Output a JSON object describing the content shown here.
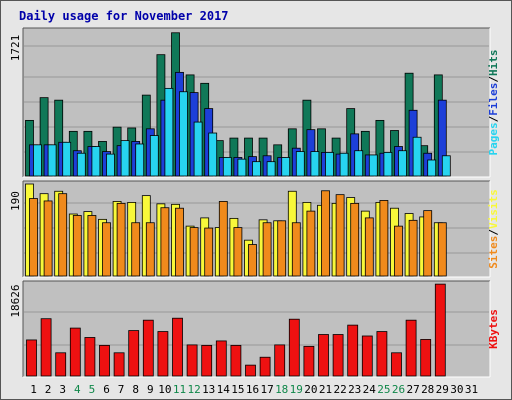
{
  "title": "Daily usage for November 2017",
  "colors": {
    "hits": "#107858",
    "files": "#1d3fd8",
    "pages": "#27d4f0",
    "visits": "#f8f83a",
    "sites": "#f08a1c",
    "kbytes": "#ee1111",
    "panel": "#c0c0c0",
    "title": "#0000aa",
    "weekend_day": "#10884a"
  },
  "chart_data": [
    {
      "type": "bar",
      "name": "hits-files-pages",
      "ymax_label": "1721",
      "ylim": [
        0,
        1721
      ],
      "legend": [
        {
          "text": "Pages",
          "color": "#27d4f0"
        },
        {
          "text": "/",
          "color": "#000000"
        },
        {
          "text": "Files",
          "color": "#1d3fd8"
        },
        {
          "text": "/",
          "color": "#000000"
        },
        {
          "text": "Hits",
          "color": "#107858"
        }
      ],
      "categories": [
        "1",
        "2",
        "3",
        "4",
        "5",
        "6",
        "7",
        "8",
        "9",
        "10",
        "11",
        "12",
        "13",
        "14",
        "15",
        "16",
        "17",
        "18",
        "19",
        "20",
        "21",
        "22",
        "23",
        "24",
        "25",
        "26",
        "27",
        "28",
        "29",
        "30",
        "31"
      ],
      "series": [
        {
          "name": "Hits",
          "values": [
            660,
            930,
            900,
            530,
            530,
            410,
            580,
            570,
            960,
            1440,
            1700,
            1200,
            1100,
            420,
            450,
            450,
            450,
            370,
            560,
            900,
            560,
            450,
            800,
            530,
            660,
            540,
            1220,
            360,
            1200,
            0,
            0
          ]
        },
        {
          "name": "Files",
          "values": [
            370,
            370,
            400,
            300,
            350,
            290,
            360,
            410,
            560,
            900,
            1230,
            990,
            800,
            220,
            220,
            230,
            240,
            220,
            330,
            550,
            280,
            260,
            500,
            250,
            270,
            350,
            780,
            270,
            900,
            0,
            0
          ]
        },
        {
          "name": "Pages",
          "values": [
            370,
            370,
            400,
            270,
            350,
            260,
            420,
            380,
            480,
            1040,
            1000,
            640,
            510,
            220,
            200,
            170,
            170,
            220,
            290,
            290,
            280,
            270,
            300,
            250,
            280,
            300,
            460,
            190,
            240,
            0,
            0
          ]
        }
      ]
    },
    {
      "type": "bar",
      "name": "visits-sites",
      "ymax_label": "190",
      "ylim": [
        0,
        190
      ],
      "legend": [
        {
          "text": "Sites",
          "color": "#f08a1c"
        },
        {
          "text": "/",
          "color": "#000000"
        },
        {
          "text": "Visits",
          "color": "#f8f83a"
        }
      ],
      "categories": [
        "1",
        "2",
        "3",
        "4",
        "5",
        "6",
        "7",
        "8",
        "9",
        "10",
        "11",
        "12",
        "13",
        "14",
        "15",
        "16",
        "17",
        "18",
        "19",
        "20",
        "21",
        "22",
        "23",
        "24",
        "25",
        "26",
        "27",
        "28",
        "29",
        "30",
        "31"
      ],
      "series": [
        {
          "name": "Visits",
          "values": [
            190,
            170,
            175,
            128,
            133,
            117,
            154,
            152,
            166,
            149,
            148,
            103,
            120,
            100,
            119,
            74,
            116,
            114,
            175,
            152,
            146,
            150,
            162,
            134,
            152,
            140,
            129,
            122,
            110,
            0,
            0
          ]
        },
        {
          "name": "Sites",
          "values": [
            160,
            155,
            170,
            125,
            125,
            110,
            150,
            110,
            110,
            141,
            140,
            100,
            99,
            154,
            100,
            65,
            110,
            114,
            110,
            134,
            176,
            168,
            150,
            120,
            156,
            103,
            115,
            135,
            110,
            0,
            0
          ]
        }
      ]
    },
    {
      "type": "bar",
      "name": "kbytes",
      "ymax_label": "18626",
      "ylim": [
        0,
        18626
      ],
      "legend": [
        {
          "text": "KBytes",
          "color": "#ee1111"
        }
      ],
      "categories": [
        "1",
        "2",
        "3",
        "4",
        "5",
        "6",
        "7",
        "8",
        "9",
        "10",
        "11",
        "12",
        "13",
        "14",
        "15",
        "16",
        "17",
        "18",
        "19",
        "20",
        "21",
        "22",
        "23",
        "24",
        "25",
        "26",
        "27",
        "28",
        "29",
        "30",
        "31"
      ],
      "series": [
        {
          "name": "KBytes",
          "values": [
            7300,
            11600,
            4700,
            9700,
            7800,
            6200,
            4700,
            9200,
            11300,
            9000,
            11700,
            6300,
            6200,
            7100,
            6200,
            2200,
            3800,
            6300,
            11500,
            6000,
            8400,
            8400,
            10300,
            8100,
            9000,
            4700,
            11300,
            7400,
            18600,
            0,
            0
          ]
        }
      ]
    }
  ],
  "x_labels": [
    {
      "text": "1",
      "weekend": false
    },
    {
      "text": "2",
      "weekend": false
    },
    {
      "text": "3",
      "weekend": false
    },
    {
      "text": "4",
      "weekend": true
    },
    {
      "text": "5",
      "weekend": true
    },
    {
      "text": "6",
      "weekend": false
    },
    {
      "text": "7",
      "weekend": false
    },
    {
      "text": "8",
      "weekend": false
    },
    {
      "text": "9",
      "weekend": false
    },
    {
      "text": "10",
      "weekend": false
    },
    {
      "text": "11",
      "weekend": true
    },
    {
      "text": "12",
      "weekend": true
    },
    {
      "text": "13",
      "weekend": false
    },
    {
      "text": "14",
      "weekend": false
    },
    {
      "text": "15",
      "weekend": false
    },
    {
      "text": "16",
      "weekend": false
    },
    {
      "text": "17",
      "weekend": false
    },
    {
      "text": "18",
      "weekend": true
    },
    {
      "text": "19",
      "weekend": true
    },
    {
      "text": "20",
      "weekend": false
    },
    {
      "text": "21",
      "weekend": false
    },
    {
      "text": "22",
      "weekend": false
    },
    {
      "text": "23",
      "weekend": false
    },
    {
      "text": "24",
      "weekend": false
    },
    {
      "text": "25",
      "weekend": true
    },
    {
      "text": "26",
      "weekend": true
    },
    {
      "text": "27",
      "weekend": false
    },
    {
      "text": "28",
      "weekend": false
    },
    {
      "text": "29",
      "weekend": false
    },
    {
      "text": "30",
      "weekend": false
    },
    {
      "text": "31",
      "weekend": false
    }
  ]
}
